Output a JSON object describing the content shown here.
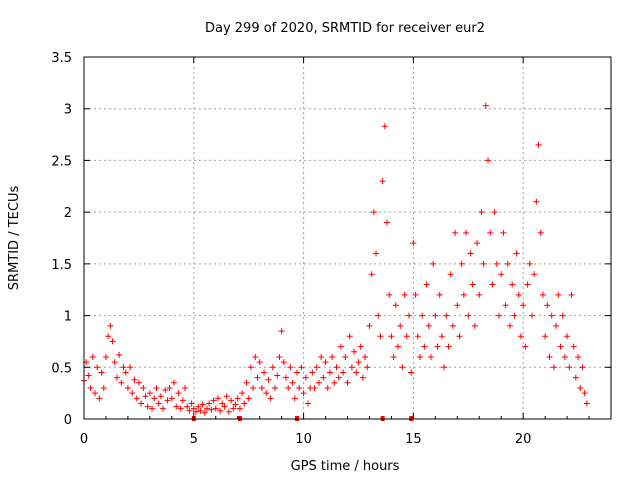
{
  "chart_data": {
    "type": "scatter",
    "title": "Day 299 of 2020, SRMTID for receiver eur2",
    "xlabel": "GPS time / hours",
    "ylabel": "SRMTID / TECUs",
    "xlim": [
      0,
      24
    ],
    "ylim": [
      0,
      3.5
    ],
    "x_ticks": [
      0,
      5,
      10,
      15,
      20
    ],
    "x_tick_labels": [
      "0",
      "5",
      "10",
      "15",
      "20"
    ],
    "y_ticks": [
      0,
      0.5,
      1,
      1.5,
      2,
      2.5,
      3,
      3.5
    ],
    "y_tick_labels": [
      "0",
      "0.5",
      "1",
      "1.5",
      "2",
      "2.5",
      "3",
      "3.5"
    ],
    "grid": true,
    "marker": "+",
    "color": "#ff0000",
    "gap_markers_x": [
      5.0,
      7.1,
      9.7,
      13.6,
      14.9
    ],
    "series": [
      {
        "name": "SRMTID",
        "points": [
          [
            0.0,
            0.37
          ],
          [
            0.1,
            0.55
          ],
          [
            0.2,
            0.42
          ],
          [
            0.3,
            0.3
          ],
          [
            0.4,
            0.6
          ],
          [
            0.5,
            0.25
          ],
          [
            0.6,
            0.5
          ],
          [
            0.7,
            0.2
          ],
          [
            0.8,
            0.45
          ],
          [
            0.9,
            0.3
          ],
          [
            1.0,
            0.6
          ],
          [
            1.1,
            0.8
          ],
          [
            1.2,
            0.9
          ],
          [
            1.3,
            0.75
          ],
          [
            1.4,
            0.55
          ],
          [
            1.5,
            0.4
          ],
          [
            1.6,
            0.62
          ],
          [
            1.7,
            0.35
          ],
          [
            1.8,
            0.5
          ],
          [
            1.9,
            0.45
          ],
          [
            2.0,
            0.3
          ],
          [
            2.1,
            0.5
          ],
          [
            2.2,
            0.25
          ],
          [
            2.3,
            0.38
          ],
          [
            2.4,
            0.2
          ],
          [
            2.5,
            0.35
          ],
          [
            2.6,
            0.15
          ],
          [
            2.7,
            0.3
          ],
          [
            2.8,
            0.22
          ],
          [
            2.9,
            0.12
          ],
          [
            3.0,
            0.25
          ],
          [
            3.1,
            0.1
          ],
          [
            3.2,
            0.2
          ],
          [
            3.3,
            0.3
          ],
          [
            3.4,
            0.15
          ],
          [
            3.5,
            0.22
          ],
          [
            3.6,
            0.1
          ],
          [
            3.7,
            0.28
          ],
          [
            3.8,
            0.18
          ],
          [
            3.9,
            0.3
          ],
          [
            4.0,
            0.2
          ],
          [
            4.1,
            0.35
          ],
          [
            4.2,
            0.12
          ],
          [
            4.3,
            0.25
          ],
          [
            4.4,
            0.1
          ],
          [
            4.5,
            0.18
          ],
          [
            4.6,
            0.3
          ],
          [
            4.7,
            0.12
          ],
          [
            4.8,
            0.08
          ],
          [
            4.9,
            0.15
          ],
          [
            5.0,
            0.1
          ],
          [
            5.1,
            0.07
          ],
          [
            5.2,
            0.12
          ],
          [
            5.3,
            0.08
          ],
          [
            5.4,
            0.14
          ],
          [
            5.5,
            0.06
          ],
          [
            5.6,
            0.1
          ],
          [
            5.7,
            0.15
          ],
          [
            5.8,
            0.09
          ],
          [
            5.9,
            0.18
          ],
          [
            6.0,
            0.1
          ],
          [
            6.1,
            0.2
          ],
          [
            6.2,
            0.08
          ],
          [
            6.3,
            0.15
          ],
          [
            6.4,
            0.12
          ],
          [
            6.5,
            0.22
          ],
          [
            6.6,
            0.07
          ],
          [
            6.7,
            0.18
          ],
          [
            6.8,
            0.1
          ],
          [
            6.9,
            0.14
          ],
          [
            7.0,
            0.2
          ],
          [
            7.1,
            0.1
          ],
          [
            7.2,
            0.25
          ],
          [
            7.3,
            0.15
          ],
          [
            7.4,
            0.35
          ],
          [
            7.5,
            0.2
          ],
          [
            7.6,
            0.5
          ],
          [
            7.7,
            0.3
          ],
          [
            7.8,
            0.6
          ],
          [
            7.9,
            0.4
          ],
          [
            8.0,
            0.55
          ],
          [
            8.1,
            0.3
          ],
          [
            8.2,
            0.45
          ],
          [
            8.3,
            0.25
          ],
          [
            8.4,
            0.38
          ],
          [
            8.5,
            0.2
          ],
          [
            8.6,
            0.5
          ],
          [
            8.7,
            0.3
          ],
          [
            8.8,
            0.42
          ],
          [
            8.9,
            0.6
          ],
          [
            9.0,
            0.85
          ],
          [
            9.1,
            0.55
          ],
          [
            9.2,
            0.4
          ],
          [
            9.3,
            0.3
          ],
          [
            9.4,
            0.5
          ],
          [
            9.5,
            0.35
          ],
          [
            9.6,
            0.2
          ],
          [
            9.7,
            0.45
          ],
          [
            9.8,
            0.3
          ],
          [
            9.9,
            0.5
          ],
          [
            10.0,
            0.25
          ],
          [
            10.1,
            0.4
          ],
          [
            10.2,
            0.15
          ],
          [
            10.3,
            0.3
          ],
          [
            10.4,
            0.45
          ],
          [
            10.5,
            0.3
          ],
          [
            10.6,
            0.5
          ],
          [
            10.7,
            0.35
          ],
          [
            10.8,
            0.6
          ],
          [
            10.9,
            0.4
          ],
          [
            11.0,
            0.55
          ],
          [
            11.1,
            0.3
          ],
          [
            11.2,
            0.45
          ],
          [
            11.3,
            0.6
          ],
          [
            11.4,
            0.35
          ],
          [
            11.5,
            0.5
          ],
          [
            11.6,
            0.4
          ],
          [
            11.7,
            0.7
          ],
          [
            11.8,
            0.45
          ],
          [
            11.9,
            0.6
          ],
          [
            12.0,
            0.35
          ],
          [
            12.1,
            0.8
          ],
          [
            12.2,
            0.5
          ],
          [
            12.3,
            0.65
          ],
          [
            12.4,
            0.45
          ],
          [
            12.5,
            0.55
          ],
          [
            12.6,
            0.7
          ],
          [
            12.7,
            0.4
          ],
          [
            12.8,
            0.6
          ],
          [
            12.9,
            0.5
          ],
          [
            13.0,
            0.9
          ],
          [
            13.1,
            1.4
          ],
          [
            13.2,
            2.0
          ],
          [
            13.3,
            1.6
          ],
          [
            13.4,
            1.0
          ],
          [
            13.5,
            0.8
          ],
          [
            13.6,
            2.3
          ],
          [
            13.7,
            2.83
          ],
          [
            13.8,
            1.9
          ],
          [
            13.9,
            1.2
          ],
          [
            14.0,
            0.8
          ],
          [
            14.1,
            0.6
          ],
          [
            14.2,
            1.1
          ],
          [
            14.3,
            0.7
          ],
          [
            14.4,
            0.9
          ],
          [
            14.5,
            0.5
          ],
          [
            14.6,
            1.2
          ],
          [
            14.7,
            0.8
          ],
          [
            14.8,
            1.0
          ],
          [
            14.9,
            0.45
          ],
          [
            15.0,
            1.7
          ],
          [
            15.1,
            1.2
          ],
          [
            15.2,
            0.8
          ],
          [
            15.3,
            0.6
          ],
          [
            15.4,
            1.0
          ],
          [
            15.5,
            0.7
          ],
          [
            15.6,
            1.3
          ],
          [
            15.7,
            0.9
          ],
          [
            15.8,
            0.6
          ],
          [
            15.9,
            1.5
          ],
          [
            16.0,
            1.0
          ],
          [
            16.1,
            0.7
          ],
          [
            16.2,
            1.2
          ],
          [
            16.3,
            0.8
          ],
          [
            16.4,
            0.5
          ],
          [
            16.5,
            1.0
          ],
          [
            16.6,
            0.7
          ],
          [
            16.7,
            1.4
          ],
          [
            16.8,
            0.9
          ],
          [
            16.9,
            1.8
          ],
          [
            17.0,
            1.1
          ],
          [
            17.1,
            0.8
          ],
          [
            17.2,
            1.5
          ],
          [
            17.3,
            1.2
          ],
          [
            17.4,
            1.8
          ],
          [
            17.5,
            1.0
          ],
          [
            17.6,
            1.6
          ],
          [
            17.7,
            1.3
          ],
          [
            17.8,
            0.9
          ],
          [
            17.9,
            1.7
          ],
          [
            18.0,
            1.2
          ],
          [
            18.1,
            2.0
          ],
          [
            18.2,
            1.5
          ],
          [
            18.3,
            3.03
          ],
          [
            18.4,
            2.5
          ],
          [
            18.5,
            1.8
          ],
          [
            18.6,
            1.3
          ],
          [
            18.7,
            2.0
          ],
          [
            18.8,
            1.5
          ],
          [
            18.9,
            1.0
          ],
          [
            19.0,
            1.4
          ],
          [
            19.1,
            1.8
          ],
          [
            19.2,
            1.1
          ],
          [
            19.3,
            1.5
          ],
          [
            19.4,
            0.9
          ],
          [
            19.5,
            1.3
          ],
          [
            19.6,
            1.0
          ],
          [
            19.7,
            1.6
          ],
          [
            19.8,
            1.2
          ],
          [
            19.9,
            0.8
          ],
          [
            20.0,
            1.1
          ],
          [
            20.1,
            0.7
          ],
          [
            20.2,
            1.3
          ],
          [
            20.3,
            1.5
          ],
          [
            20.4,
            1.0
          ],
          [
            20.5,
            1.4
          ],
          [
            20.6,
            2.1
          ],
          [
            20.7,
            2.65
          ],
          [
            20.8,
            1.8
          ],
          [
            20.9,
            1.2
          ],
          [
            21.0,
            0.8
          ],
          [
            21.1,
            1.1
          ],
          [
            21.2,
            0.6
          ],
          [
            21.3,
            1.0
          ],
          [
            21.4,
            0.5
          ],
          [
            21.5,
            0.9
          ],
          [
            21.6,
            1.2
          ],
          [
            21.7,
            0.7
          ],
          [
            21.8,
            1.0
          ],
          [
            21.9,
            0.6
          ],
          [
            22.0,
            0.8
          ],
          [
            22.1,
            0.5
          ],
          [
            22.2,
            1.2
          ],
          [
            22.3,
            0.7
          ],
          [
            22.4,
            0.4
          ],
          [
            22.5,
            0.6
          ],
          [
            22.6,
            0.3
          ],
          [
            22.7,
            0.5
          ],
          [
            22.8,
            0.25
          ],
          [
            22.9,
            0.15
          ]
        ]
      }
    ]
  }
}
